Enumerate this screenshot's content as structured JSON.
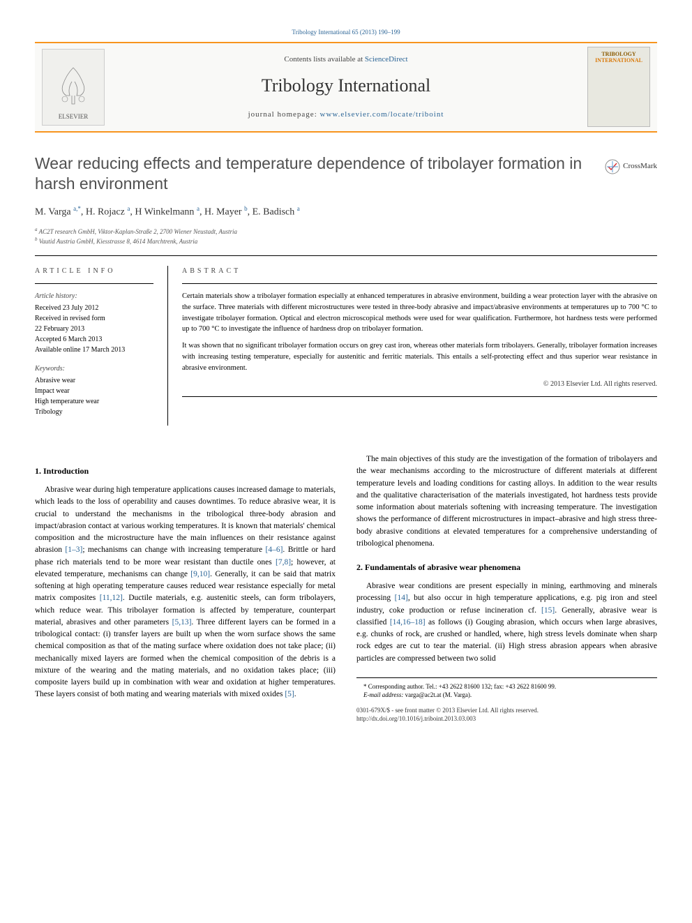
{
  "running_head": "Tribology International 65 (2013) 190–199",
  "header": {
    "contents_prefix": "Contents lists available at ",
    "contents_link": "ScienceDirect",
    "journal_name": "Tribology International",
    "homepage_prefix": "journal homepage: ",
    "homepage_link": "www.elsevier.com/locate/triboint",
    "publisher_name": "ELSEVIER",
    "cover_title_top": "TRIBOLOGY",
    "cover_title_bottom": "INTERNATIONAL"
  },
  "crossmark_label": "CrossMark",
  "title": "Wear reducing effects and temperature dependence of tribolayer formation in harsh environment",
  "authors_html": "M. Varga <sup class='author-link'>a,*</sup>, H. Rojacz <sup class='author-link'>a</sup>, H Winkelmann <sup class='author-link'>a</sup>, H. Mayer <sup class='author-link'>b</sup>, E. Badisch <sup class='author-link'>a</sup>",
  "affiliations": [
    "a AC2T research GmbH, Viktor-Kaplan-Straße 2, 2700 Wiener Neustadt, Austria",
    "b Vautid Austria GmbH, Kiesstrasse 8, 4614 Marchtrenk, Austria"
  ],
  "article_info": {
    "label": "ARTICLE INFO",
    "history_heading": "Article history:",
    "history": [
      "Received 23 July 2012",
      "Received in revised form",
      "22 February 2013",
      "Accepted 6 March 2013",
      "Available online 17 March 2013"
    ],
    "keywords_heading": "Keywords:",
    "keywords": [
      "Abrasive wear",
      "Impact wear",
      "High temperature wear",
      "Tribology"
    ]
  },
  "abstract": {
    "label": "ABSTRACT",
    "paragraphs": [
      "Certain materials show a tribolayer formation especially at enhanced temperatures in abrasive environment, building a wear protection layer with the abrasive on the surface. Three materials with different microstructures were tested in three-body abrasive and impact/abrasive environments at temperatures up to 700 °C to investigate tribolayer formation. Optical and electron microscopical methods were used for wear qualification. Furthermore, hot hardness tests were performed up to 700 °C to investigate the influence of hardness drop on tribolayer formation.",
      "It was shown that no significant tribolayer formation occurs on grey cast iron, whereas other materials form tribolayers. Generally, tribolayer formation increases with increasing testing temperature, especially for austenitic and ferritic materials. This entails a self-protecting effect and thus superior wear resistance in abrasive environment."
    ],
    "copyright": "© 2013 Elsevier Ltd. All rights reserved."
  },
  "sections": {
    "intro_heading": "1.  Introduction",
    "intro_paragraphs": [
      "Abrasive wear during high temperature applications causes increased damage to materials, which leads to the loss of operability and causes downtimes. To reduce abrasive wear, it is crucial to understand the mechanisms in the tribological three-body abrasion and impact/abrasion contact at various working temperatures. It is known that materials' chemical composition and the microstructure have the main influences on their resistance against abrasion <a class='ref-link' href='#'>[1–3]</a>; mechanisms can change with increasing temperature <a class='ref-link' href='#'>[4–6]</a>. Brittle or hard phase rich materials tend to be more wear resistant than ductile ones <a class='ref-link' href='#'>[7,8]</a>; however, at elevated temperature, mechanisms can change <a class='ref-link' href='#'>[9,10]</a>. Generally, it can be said that matrix softening at high operating temperature causes reduced wear resistance especially for metal matrix composites <a class='ref-link' href='#'>[11,12]</a>. Ductile materials, e.g. austenitic steels, can form tribolayers, which reduce wear. This tribolayer formation is affected by temperature, counterpart material, abrasives and other parameters <a class='ref-link' href='#'>[5,13]</a>. Three different layers can be formed in a tribological contact: (i) transfer layers are built up when the worn surface shows the same chemical composition as that of the mating surface where oxidation does not take place; (ii) mechanically mixed layers are formed when the chemical composition of the debris is a mixture of the wearing and the mating materials, and no oxidation takes place; (iii) composite layers build up in combination with wear and oxidation at higher temperatures. These layers consist of both mating and wearing materials with mixed oxides <a class='ref-link' href='#'>[5]</a>.",
      "The main objectives of this study are the investigation of the formation of tribolayers and the wear mechanisms according to the microstructure of different materials at different temperature levels and loading conditions for casting alloys. In addition to the wear results and the qualitative characterisation of the materials investigated, hot hardness tests provide some information about materials softening with increasing temperature. The investigation shows the performance of different microstructures in impact–abrasive and high stress three-body abrasive conditions at elevated temperatures for a comprehensive understanding of tribological phenomena."
    ],
    "fund_heading": "2.  Fundamentals of abrasive wear phenomena",
    "fund_paragraphs": [
      "Abrasive wear conditions are present especially in mining, earthmoving and minerals processing <a class='ref-link' href='#'>[14]</a>, but also occur in high temperature applications, e.g. pig iron and steel industry, coke production or refuse incineration cf. <a class='ref-link' href='#'>[15]</a>. Generally, abrasive wear is classified <a class='ref-link' href='#'>[14,16–18]</a> as follows (i) Gouging abrasion, which occurs when large abrasives, e.g. chunks of rock, are crushed or handled, where, high stress levels dominate when sharp rock edges are cut to tear the material. (ii) High stress abrasion appears when abrasive particles are compressed between two solid"
    ]
  },
  "footnotes": {
    "corresponding": "* Corresponding author. Tel.: +43 2622 81600 132; fax: +43 2622 81600 99.",
    "email_label": "E-mail address: ",
    "email": "varga@ac2t.at (M. Varga)."
  },
  "footer": {
    "line1": "0301-679X/$ - see front matter © 2013 Elsevier Ltd. All rights reserved.",
    "line2": "http://dx.doi.org/10.1016/j.triboint.2013.03.003"
  },
  "colors": {
    "accent_orange": "#f7941d",
    "link_blue": "#2a6496",
    "title_grey": "#505050"
  }
}
